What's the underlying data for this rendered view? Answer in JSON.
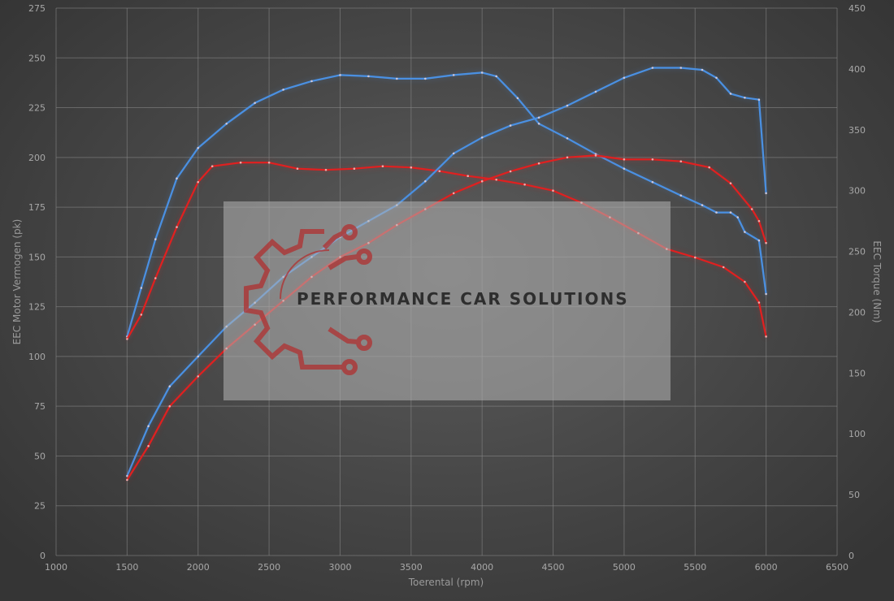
{
  "chart_data": {
    "type": "line",
    "title": "",
    "xlabel": "Toerental (rpm)",
    "ylabel_left": "EEC Motor Vermogen (pk)",
    "ylabel_right": "EEC Torque (Nm)",
    "xlim": [
      1000,
      6500
    ],
    "xticks": [
      1000,
      1500,
      2000,
      2500,
      3000,
      3500,
      4000,
      4500,
      5000,
      5500,
      6000,
      6500
    ],
    "ylim_left": [
      0,
      275
    ],
    "yticks_left": [
      0,
      25,
      50,
      75,
      100,
      125,
      150,
      175,
      200,
      225,
      250,
      275
    ],
    "ylim_right": [
      0,
      450
    ],
    "yticks_right": [
      0,
      50,
      100,
      150,
      200,
      250,
      300,
      350,
      400,
      450
    ],
    "grid": true,
    "series": [
      {
        "axis": "right",
        "color": "#4a90e2",
        "points": [
          [
            1500,
            180
          ],
          [
            1600,
            220
          ],
          [
            1700,
            260
          ],
          [
            1850,
            310
          ],
          [
            2000,
            335
          ],
          [
            2200,
            355
          ],
          [
            2400,
            372
          ],
          [
            2600,
            383
          ],
          [
            2800,
            390
          ],
          [
            3000,
            395
          ],
          [
            3200,
            394
          ],
          [
            3400,
            392
          ],
          [
            3600,
            392
          ],
          [
            3800,
            395
          ],
          [
            4000,
            397
          ],
          [
            4100,
            394
          ],
          [
            4250,
            376
          ],
          [
            4400,
            355
          ],
          [
            4600,
            343
          ],
          [
            4800,
            330
          ],
          [
            5000,
            318
          ],
          [
            5200,
            307
          ],
          [
            5400,
            296
          ],
          [
            5550,
            288
          ],
          [
            5650,
            282
          ],
          [
            5750,
            282
          ],
          [
            5800,
            278
          ],
          [
            5850,
            266
          ],
          [
            5950,
            259
          ],
          [
            6000,
            215
          ]
        ]
      },
      {
        "axis": "right",
        "color": "#e02020",
        "points": [
          [
            1500,
            178
          ],
          [
            1600,
            198
          ],
          [
            1700,
            228
          ],
          [
            1850,
            270
          ],
          [
            2000,
            307
          ],
          [
            2100,
            320
          ],
          [
            2300,
            323
          ],
          [
            2500,
            323
          ],
          [
            2700,
            318
          ],
          [
            2900,
            317
          ],
          [
            3100,
            318
          ],
          [
            3300,
            320
          ],
          [
            3500,
            319
          ],
          [
            3700,
            316
          ],
          [
            3900,
            312
          ],
          [
            4100,
            309
          ],
          [
            4300,
            305
          ],
          [
            4500,
            300
          ],
          [
            4700,
            290
          ],
          [
            4900,
            278
          ],
          [
            5100,
            265
          ],
          [
            5300,
            252
          ],
          [
            5500,
            245
          ],
          [
            5700,
            237
          ],
          [
            5850,
            225
          ],
          [
            5950,
            208
          ],
          [
            6000,
            180
          ]
        ]
      },
      {
        "axis": "left",
        "color": "#4a90e2",
        "points": [
          [
            1500,
            40
          ],
          [
            1650,
            65
          ],
          [
            1800,
            85
          ],
          [
            2000,
            100
          ],
          [
            2200,
            115
          ],
          [
            2400,
            127
          ],
          [
            2600,
            140
          ],
          [
            2800,
            150
          ],
          [
            3000,
            160
          ],
          [
            3200,
            168
          ],
          [
            3400,
            176
          ],
          [
            3600,
            188
          ],
          [
            3800,
            202
          ],
          [
            4000,
            210
          ],
          [
            4200,
            216
          ],
          [
            4400,
            220
          ],
          [
            4600,
            226
          ],
          [
            4800,
            233
          ],
          [
            5000,
            240
          ],
          [
            5200,
            245
          ],
          [
            5400,
            245
          ],
          [
            5550,
            244
          ],
          [
            5650,
            240
          ],
          [
            5750,
            232
          ],
          [
            5850,
            230
          ],
          [
            5950,
            229
          ],
          [
            6000,
            182
          ]
        ]
      },
      {
        "axis": "left",
        "color": "#e02020",
        "points": [
          [
            1500,
            38
          ],
          [
            1650,
            55
          ],
          [
            1800,
            75
          ],
          [
            2000,
            90
          ],
          [
            2200,
            104
          ],
          [
            2400,
            116
          ],
          [
            2600,
            128
          ],
          [
            2800,
            140
          ],
          [
            3000,
            150
          ],
          [
            3200,
            157
          ],
          [
            3400,
            166
          ],
          [
            3600,
            174
          ],
          [
            3800,
            182
          ],
          [
            4000,
            188
          ],
          [
            4200,
            193
          ],
          [
            4400,
            197
          ],
          [
            4600,
            200
          ],
          [
            4800,
            201
          ],
          [
            5000,
            199
          ],
          [
            5200,
            199
          ],
          [
            5400,
            198
          ],
          [
            5600,
            195
          ],
          [
            5750,
            187
          ],
          [
            5900,
            174
          ],
          [
            5950,
            168
          ],
          [
            6000,
            157
          ]
        ]
      }
    ]
  },
  "watermark": {
    "text": "PERFORMANCE CAR SOLUTIONS",
    "logo": "gear-circuit-logo"
  }
}
